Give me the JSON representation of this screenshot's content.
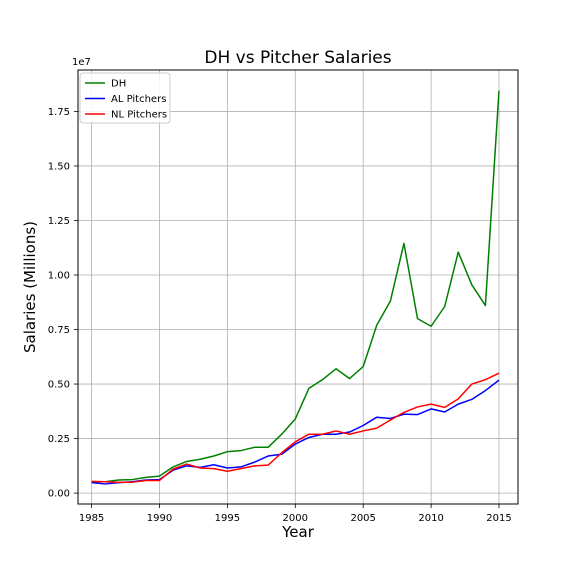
{
  "chart_data": {
    "type": "line",
    "title": "DH vs Pitcher Salaries",
    "xlabel": "Year",
    "ylabel": "Salaries (Millions)",
    "y_offset_label": "1e7",
    "xlim": [
      1984.0,
      2016.4
    ],
    "ylim": [
      -500000,
      19400000
    ],
    "xticks": [
      1985,
      1990,
      1995,
      2000,
      2005,
      2010,
      2015
    ],
    "yticks": [
      0,
      2500000,
      5000000,
      7500000,
      10000000,
      12500000,
      15000000,
      17500000
    ],
    "ytick_labels": [
      "0.00",
      "0.25",
      "0.50",
      "0.75",
      "1.00",
      "1.25",
      "1.50",
      "1.75"
    ],
    "grid": true,
    "legend_position": "top-left",
    "x": [
      1985,
      1986,
      1987,
      1988,
      1989,
      1990,
      1991,
      1992,
      1993,
      1994,
      1995,
      1996,
      1997,
      1998,
      1999,
      2000,
      2001,
      2002,
      2003,
      2004,
      2005,
      2006,
      2007,
      2008,
      2009,
      2010,
      2011,
      2012,
      2013,
      2014,
      2015
    ],
    "series": [
      {
        "name": "DH",
        "color": "#008000",
        "values": [
          520000,
          520000,
          600000,
          620000,
          720000,
          780000,
          1200000,
          1450000,
          1550000,
          1700000,
          1900000,
          1950000,
          2100000,
          2100000,
          2700000,
          3400000,
          4800000,
          5200000,
          5700000,
          5250000,
          5800000,
          7700000,
          8800000,
          11450000,
          8000000,
          7650000,
          8550000,
          11050000,
          9550000,
          8600000,
          18450000
        ]
      },
      {
        "name": "AL Pitchers",
        "color": "#0000ff",
        "values": [
          480000,
          420000,
          480000,
          520000,
          600000,
          620000,
          1050000,
          1250000,
          1180000,
          1300000,
          1150000,
          1200000,
          1420000,
          1700000,
          1780000,
          2250000,
          2550000,
          2700000,
          2700000,
          2800000,
          3100000,
          3480000,
          3420000,
          3620000,
          3600000,
          3860000,
          3720000,
          4080000,
          4300000,
          4700000,
          5180000
        ]
      },
      {
        "name": "NL Pitchers",
        "color": "#ff0000",
        "values": [
          540000,
          520000,
          490000,
          500000,
          580000,
          580000,
          1100000,
          1330000,
          1150000,
          1120000,
          1000000,
          1120000,
          1250000,
          1280000,
          1850000,
          2350000,
          2700000,
          2700000,
          2850000,
          2700000,
          2850000,
          2980000,
          3350000,
          3700000,
          3950000,
          4080000,
          3930000,
          4320000,
          5000000,
          5200000,
          5500000
        ]
      }
    ]
  }
}
